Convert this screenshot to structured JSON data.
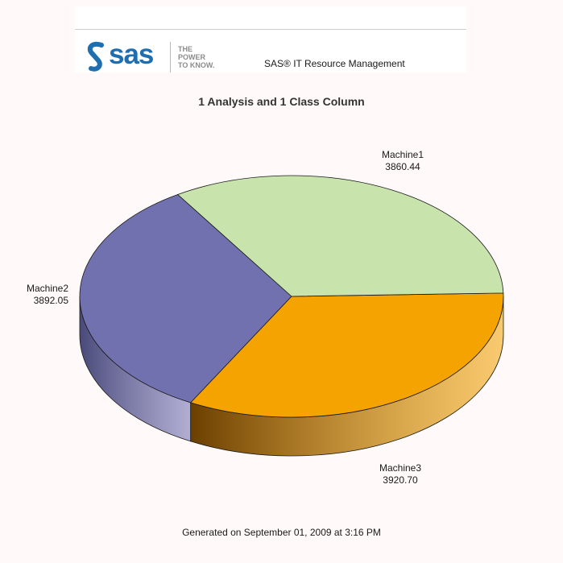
{
  "header": {
    "logo_text": "sas",
    "logo_tagline": "THE\nPOWER\nTO KNOW.",
    "app_name": "SAS® IT Resource Management"
  },
  "chart_data": {
    "type": "pie",
    "title": "1 Analysis and 1 Class Column",
    "categories": [
      "Machine1",
      "Machine2",
      "Machine3"
    ],
    "values": [
      3860.44,
      3892.05,
      3920.7
    ],
    "value_labels": [
      "3860.44",
      "3892.05",
      "3920.70"
    ],
    "colors": [
      "#7171b0",
      "#f5a300",
      "#c8e4ac"
    ],
    "side_colors": [
      "#4a4a7a",
      "#6b3f00",
      "#7c8f66"
    ],
    "three_d": true
  },
  "footer": {
    "generated": "Generated on September 01, 2009 at 3:16 PM"
  }
}
